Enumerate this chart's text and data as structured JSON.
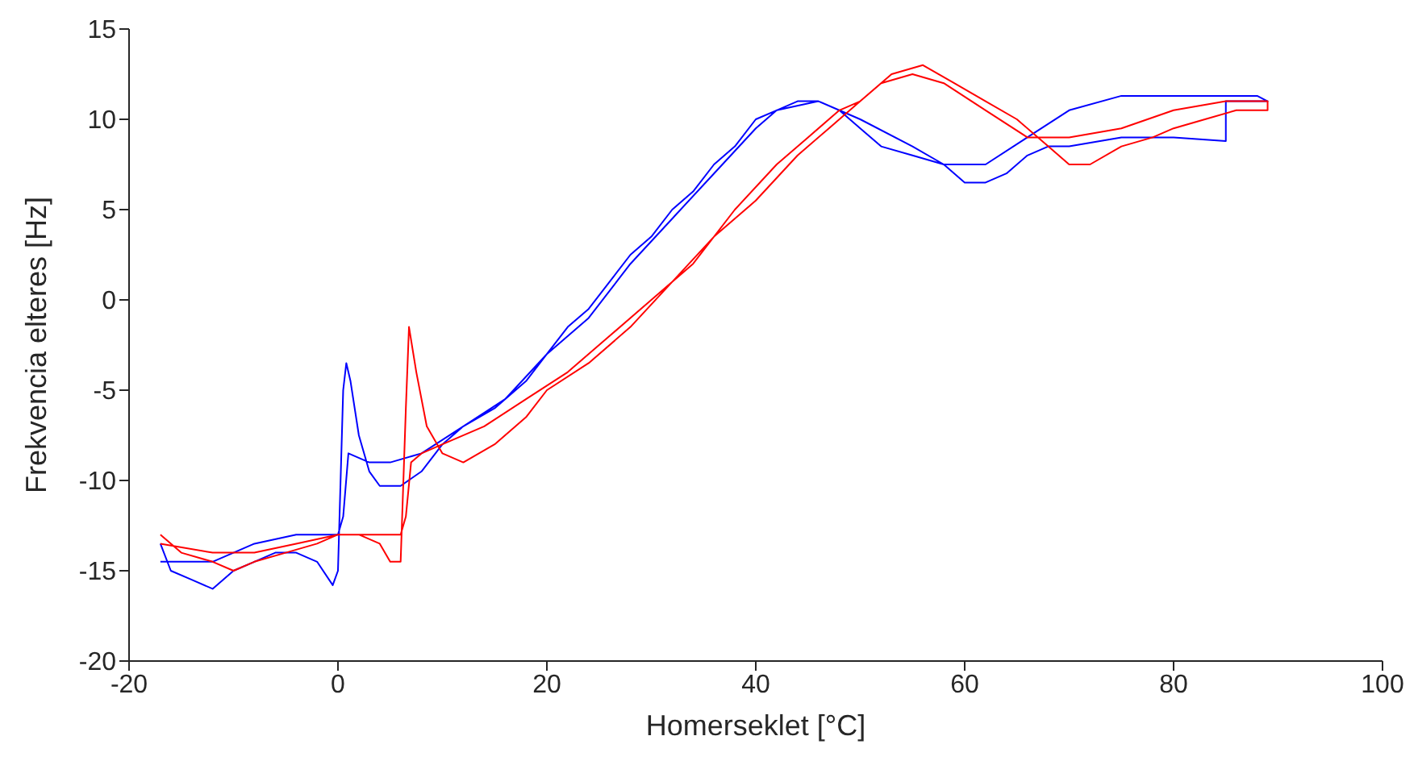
{
  "chart_data": {
    "type": "line",
    "xlabel": "Homerseklet [°C]",
    "ylabel": "Frekvencia elteres [Hz]",
    "xlim": [
      -20,
      100
    ],
    "xticks": [
      -20,
      0,
      20,
      40,
      60,
      80,
      100
    ],
    "ylim": [
      -20,
      15
    ],
    "yticks": [
      -20,
      -15,
      -10,
      -5,
      0,
      5,
      10,
      15
    ],
    "series": [
      {
        "color": "#0000ff",
        "x": [
          -17,
          -16,
          -14,
          -12,
          -10,
          -8,
          -6,
          -4,
          -2,
          -0.5,
          0,
          0.5,
          0.8,
          1.2,
          2,
          3,
          4,
          6,
          8,
          10,
          12,
          15,
          18,
          20,
          22,
          24,
          26,
          28,
          30,
          32,
          34,
          36,
          38,
          40,
          42,
          44,
          46,
          48,
          50,
          52,
          55,
          58,
          60,
          62,
          64,
          66,
          68,
          70,
          75,
          80,
          85,
          85,
          89,
          88,
          80,
          75,
          70,
          66,
          62,
          58,
          55,
          50,
          46,
          42,
          40,
          36,
          32,
          28,
          24,
          20,
          16,
          12,
          8,
          5,
          3,
          1,
          0.5,
          0,
          -2,
          -4,
          -8,
          -12,
          -17
        ],
        "values": [
          -13.5,
          -15,
          -15.5,
          -16,
          -15,
          -14.5,
          -14,
          -14,
          -14.5,
          -15.8,
          -15,
          -5,
          -3.5,
          -4.5,
          -7.5,
          -9.5,
          -10.3,
          -10.3,
          -9.5,
          -8,
          -7,
          -6,
          -4.5,
          -3,
          -1.5,
          -0.5,
          1,
          2.5,
          3.5,
          5,
          6,
          7.5,
          8.5,
          10,
          10.5,
          11,
          11,
          10.5,
          9.5,
          8.5,
          8,
          7.5,
          6.5,
          6.5,
          7,
          8,
          8.5,
          8.5,
          9,
          9,
          8.8,
          11,
          11,
          11.3,
          11.3,
          11.3,
          10.5,
          9,
          7.5,
          7.5,
          8.5,
          10,
          11,
          10.5,
          9.5,
          7,
          4.5,
          2,
          -1,
          -3,
          -5.5,
          -7,
          -8.5,
          -9,
          -9,
          -8.5,
          -12,
          -13,
          -13,
          -13,
          -13.5,
          -14.5,
          -14.5
        ]
      },
      {
        "color": "#ff0000",
        "x": [
          -17,
          -15,
          -12,
          -10,
          -8,
          -5,
          -2,
          0,
          2,
          4,
          5,
          6,
          6.5,
          6.8,
          7.5,
          8.5,
          10,
          12,
          15,
          18,
          20,
          24,
          28,
          32,
          36,
          40,
          44,
          47,
          50,
          53,
          56,
          59,
          62,
          65,
          68,
          70,
          72,
          75,
          78,
          80,
          83,
          86,
          89,
          89,
          85,
          80,
          75,
          70,
          66,
          62,
          58,
          55,
          52,
          50,
          48,
          45,
          42,
          38,
          34,
          30,
          26,
          22,
          18,
          14,
          10,
          8,
          7,
          6.5,
          6,
          3,
          0,
          -4,
          -8,
          -12,
          -17
        ],
        "values": [
          -13,
          -14,
          -14.5,
          -15,
          -14.5,
          -14,
          -13.5,
          -13,
          -13,
          -13.5,
          -14.5,
          -14.5,
          -6,
          -1.5,
          -4,
          -7,
          -8.5,
          -9,
          -8,
          -6.5,
          -5,
          -3.5,
          -1.5,
          1,
          3.5,
          5.5,
          8,
          9.5,
          11,
          12.5,
          13,
          12,
          11,
          10,
          8.5,
          7.5,
          7.5,
          8.5,
          9,
          9.5,
          10,
          10.5,
          10.5,
          11,
          11,
          10.5,
          9.5,
          9,
          9,
          10.5,
          12,
          12.5,
          12,
          11,
          10.5,
          9,
          7.5,
          5,
          2,
          0,
          -2,
          -4,
          -5.5,
          -7,
          -8,
          -8.5,
          -9,
          -12,
          -13,
          -13,
          -13,
          -13.5,
          -14,
          -14,
          -13.5
        ]
      }
    ]
  }
}
